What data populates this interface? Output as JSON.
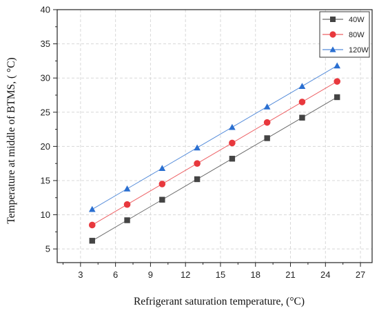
{
  "chart_data": {
    "type": "line",
    "xlabel": "Refrigerant saturation temperature, (°C)",
    "ylabel": "Temperature at middle of BTMS, ( °C)",
    "xlim": [
      1,
      28
    ],
    "ylim": [
      3,
      40
    ],
    "xticks": [
      3,
      6,
      9,
      12,
      15,
      18,
      21,
      24,
      27
    ],
    "yticks": [
      5,
      10,
      15,
      20,
      25,
      30,
      35,
      40
    ],
    "grid": true,
    "legend_position": "top-right",
    "x": [
      4,
      7,
      10,
      13,
      16,
      19,
      22,
      25
    ],
    "series": [
      {
        "name": "40W",
        "values": [
          6.2,
          9.2,
          12.2,
          15.2,
          18.2,
          21.2,
          24.2,
          27.2
        ],
        "color": "#444444",
        "marker": "square"
      },
      {
        "name": "80W",
        "values": [
          8.5,
          11.5,
          14.5,
          17.5,
          20.5,
          23.5,
          26.5,
          29.5
        ],
        "color": "#e8383d",
        "marker": "circle"
      },
      {
        "name": "120W",
        "values": [
          10.8,
          13.8,
          16.8,
          19.8,
          22.8,
          25.8,
          28.8,
          31.8
        ],
        "color": "#2a6fd1",
        "marker": "triangle"
      }
    ]
  }
}
